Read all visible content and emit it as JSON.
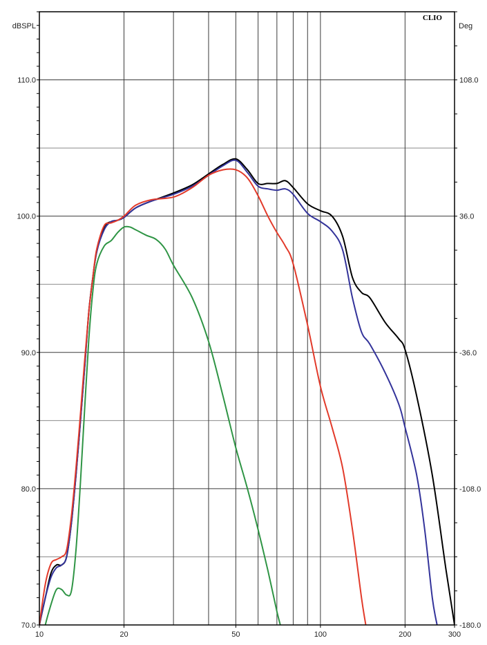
{
  "chart_data": {
    "type": "line",
    "brand": "CLIO",
    "y_unit_left": "dBSPL",
    "y_unit_right": "Deg",
    "x_scale": "log",
    "xlim": [
      10,
      300
    ],
    "ylim": [
      70,
      115
    ],
    "y2lim": [
      -180,
      144
    ],
    "grid": true,
    "x_ticks": [
      {
        "value": 10,
        "label": "10"
      },
      {
        "value": 20,
        "label": "20"
      },
      {
        "value": 50,
        "label": "50"
      },
      {
        "value": 100,
        "label": "100"
      },
      {
        "value": 200,
        "label": "200"
      },
      {
        "value": 300,
        "label": "300"
      }
    ],
    "x_grid": [
      20,
      30,
      40,
      50,
      60,
      70,
      80,
      90,
      100,
      200
    ],
    "y_ticks": [
      {
        "value": 70,
        "label": "70.0"
      },
      {
        "value": 80,
        "label": "80.0"
      },
      {
        "value": 90,
        "label": "90.0"
      },
      {
        "value": 100,
        "label": "100.0"
      },
      {
        "value": 110,
        "label": "110.0"
      }
    ],
    "y_grid": [
      75,
      80,
      85,
      90,
      95,
      100,
      105,
      110,
      115
    ],
    "y2_ticks": [
      {
        "value": -180,
        "label": "-180.0"
      },
      {
        "value": -108,
        "label": "-108.0"
      },
      {
        "value": -36,
        "label": "-36.0"
      },
      {
        "value": 36,
        "label": "36.0"
      },
      {
        "value": 108,
        "label": "108.0"
      }
    ],
    "series": [
      {
        "color": "#000000",
        "points": [
          [
            10,
            70
          ],
          [
            10.5,
            72
          ],
          [
            11,
            73.8
          ],
          [
            11.5,
            74.4
          ],
          [
            12,
            74.4
          ],
          [
            12.5,
            75
          ],
          [
            13,
            77.5
          ],
          [
            13.5,
            81
          ],
          [
            14,
            85
          ],
          [
            14.5,
            89
          ],
          [
            15,
            93
          ],
          [
            15.5,
            95.5
          ],
          [
            16,
            97.4
          ],
          [
            17,
            99.2
          ],
          [
            18,
            99.6
          ],
          [
            19,
            99.7
          ],
          [
            20,
            99.9
          ],
          [
            22,
            100.6
          ],
          [
            25,
            101.1
          ],
          [
            30,
            101.7
          ],
          [
            35,
            102.3
          ],
          [
            40,
            103.1
          ],
          [
            45,
            103.8
          ],
          [
            50,
            104.2
          ],
          [
            55,
            103.4
          ],
          [
            60,
            102.4
          ],
          [
            65,
            102.4
          ],
          [
            70,
            102.4
          ],
          [
            75,
            102.6
          ],
          [
            80,
            102.1
          ],
          [
            90,
            100.9
          ],
          [
            100,
            100.4
          ],
          [
            110,
            100
          ],
          [
            120,
            98.5
          ],
          [
            130,
            95.5
          ],
          [
            140,
            94.4
          ],
          [
            150,
            94
          ],
          [
            170,
            92.2
          ],
          [
            190,
            91
          ],
          [
            200,
            90.2
          ],
          [
            220,
            86.8
          ],
          [
            250,
            81
          ],
          [
            280,
            74
          ],
          [
            300,
            70
          ]
        ]
      },
      {
        "color": "#33339a",
        "points": [
          [
            10,
            70
          ],
          [
            10.5,
            72
          ],
          [
            11,
            73.5
          ],
          [
            11.5,
            74.2
          ],
          [
            12,
            74.4
          ],
          [
            12.5,
            75
          ],
          [
            13,
            77.5
          ],
          [
            13.5,
            81
          ],
          [
            14,
            85
          ],
          [
            14.5,
            89
          ],
          [
            15,
            93
          ],
          [
            15.5,
            95.5
          ],
          [
            16,
            97.4
          ],
          [
            17,
            99
          ],
          [
            18,
            99.6
          ],
          [
            19,
            99.7
          ],
          [
            20,
            99.9
          ],
          [
            22,
            100.6
          ],
          [
            25,
            101.1
          ],
          [
            30,
            101.6
          ],
          [
            35,
            102.2
          ],
          [
            40,
            103
          ],
          [
            45,
            103.7
          ],
          [
            50,
            104.1
          ],
          [
            55,
            103.2
          ],
          [
            60,
            102.2
          ],
          [
            65,
            102
          ],
          [
            70,
            101.9
          ],
          [
            75,
            102
          ],
          [
            80,
            101.6
          ],
          [
            90,
            100.2
          ],
          [
            100,
            99.6
          ],
          [
            110,
            98.9
          ],
          [
            120,
            97.5
          ],
          [
            130,
            94
          ],
          [
            140,
            91.5
          ],
          [
            150,
            90.6
          ],
          [
            170,
            88.5
          ],
          [
            190,
            86.2
          ],
          [
            200,
            84.5
          ],
          [
            220,
            81
          ],
          [
            235,
            77
          ],
          [
            250,
            72
          ],
          [
            260,
            70
          ]
        ]
      },
      {
        "color": "#e23a2a",
        "points": [
          [
            10,
            70
          ],
          [
            10.5,
            73
          ],
          [
            11,
            74.5
          ],
          [
            11.5,
            74.8
          ],
          [
            12,
            75
          ],
          [
            12.5,
            75.5
          ],
          [
            13,
            78
          ],
          [
            13.5,
            81.5
          ],
          [
            14,
            85.5
          ],
          [
            14.5,
            89.5
          ],
          [
            15,
            93
          ],
          [
            15.5,
            95.5
          ],
          [
            16,
            97.6
          ],
          [
            17,
            99.3
          ],
          [
            18,
            99.5
          ],
          [
            19,
            99.7
          ],
          [
            20,
            100
          ],
          [
            22,
            100.8
          ],
          [
            25,
            101.2
          ],
          [
            30,
            101.4
          ],
          [
            35,
            102.1
          ],
          [
            40,
            103
          ],
          [
            45,
            103.4
          ],
          [
            50,
            103.4
          ],
          [
            55,
            102.8
          ],
          [
            60,
            101.5
          ],
          [
            65,
            100
          ],
          [
            70,
            98.8
          ],
          [
            75,
            97.8
          ],
          [
            80,
            96.5
          ],
          [
            90,
            92
          ],
          [
            100,
            87.5
          ],
          [
            110,
            84.5
          ],
          [
            120,
            81.5
          ],
          [
            130,
            77
          ],
          [
            140,
            72
          ],
          [
            145,
            70
          ]
        ]
      },
      {
        "color": "#2e9444",
        "points": [
          [
            10,
            68
          ],
          [
            10.5,
            70
          ],
          [
            11,
            71.5
          ],
          [
            11.5,
            72.6
          ],
          [
            12,
            72.6
          ],
          [
            12.5,
            72.2
          ],
          [
            13,
            72.5
          ],
          [
            13.5,
            75.5
          ],
          [
            14,
            80.5
          ],
          [
            14.5,
            86
          ],
          [
            15,
            91
          ],
          [
            15.5,
            94.5
          ],
          [
            16,
            96.5
          ],
          [
            17,
            97.8
          ],
          [
            18,
            98.2
          ],
          [
            19,
            98.8
          ],
          [
            20,
            99.2
          ],
          [
            21,
            99.2
          ],
          [
            22,
            99
          ],
          [
            24,
            98.6
          ],
          [
            26,
            98.3
          ],
          [
            28,
            97.6
          ],
          [
            30,
            96.4
          ],
          [
            35,
            94
          ],
          [
            40,
            90.8
          ],
          [
            45,
            86.8
          ],
          [
            50,
            83
          ],
          [
            55,
            80
          ],
          [
            60,
            77
          ],
          [
            65,
            74
          ],
          [
            70,
            71
          ],
          [
            72,
            70
          ]
        ]
      }
    ]
  }
}
